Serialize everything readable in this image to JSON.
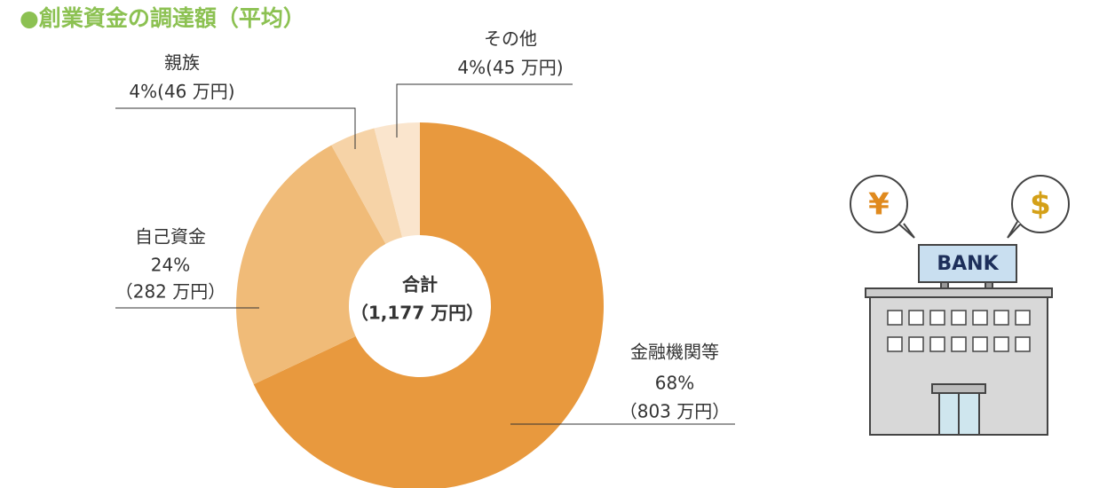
{
  "chart_data": {
    "type": "donut",
    "title": "●創業資金の調達額（平均）",
    "categories": [
      "金融機関等",
      "自己資金",
      "親族",
      "その他"
    ],
    "values": [
      68,
      24,
      4,
      4
    ],
    "value_labels": [
      "68%",
      "24%",
      "4%",
      "4%"
    ],
    "amount_labels": [
      "（803 万円）",
      "（282 万円）",
      "(46 万円)",
      "(45 万円)"
    ],
    "colors": [
      "#e8993e",
      "#f0bb78",
      "#f6d3a7",
      "#fae5cd"
    ],
    "center_title": "合計",
    "center_total": "（1,177 万円）"
  },
  "illustration": {
    "sign": "BANK",
    "bubbles": [
      "¥",
      "$"
    ]
  }
}
